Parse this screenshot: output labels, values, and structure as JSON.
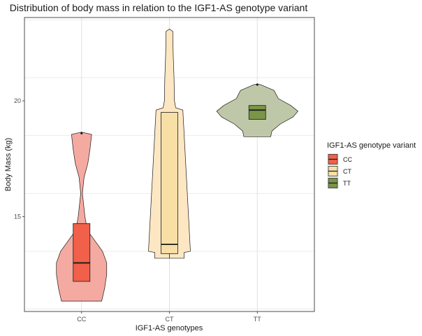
{
  "chart_data": {
    "type": "violin",
    "title": "Distribution of body mass in relation to the IGF1-AS genotype variant",
    "xlabel": "IGF1-AS genotypes",
    "ylabel": "Body Mass (kg)",
    "categories": [
      "CC",
      "CT",
      "TT"
    ],
    "y_ticks": [
      15,
      20
    ],
    "ylim": [
      10.9,
      23.6
    ],
    "grid": true,
    "legend": {
      "title": "IGF1-AS genotype variant",
      "position": "right",
      "entries": [
        "CC",
        "CT",
        "TT"
      ]
    },
    "colors": {
      "CC": {
        "fill": "#f4aaa1",
        "box": "#f0604a"
      },
      "CT": {
        "fill": "#fde7c3",
        "box": "#f7dfa6"
      },
      "TT": {
        "fill": "#bec8a8",
        "box": "#7a9448"
      }
    },
    "series": [
      {
        "name": "CC",
        "box": {
          "min": 12.2,
          "q1": 12.2,
          "median": 13.0,
          "q3": 14.7,
          "max": 14.7
        },
        "outliers": [
          18.6
        ],
        "violin": [
          {
            "y": 11.35,
            "w": 0.48
          },
          {
            "y": 11.9,
            "w": 0.55
          },
          {
            "y": 12.5,
            "w": 0.6
          },
          {
            "y": 13.0,
            "w": 0.6
          },
          {
            "y": 13.5,
            "w": 0.5
          },
          {
            "y": 14.0,
            "w": 0.3
          },
          {
            "y": 14.4,
            "w": 0.14
          },
          {
            "y": 15.0,
            "w": 0.08
          },
          {
            "y": 16.0,
            "w": 0.02
          },
          {
            "y": 16.7,
            "w": 0.06
          },
          {
            "y": 17.3,
            "w": 0.15
          },
          {
            "y": 17.9,
            "w": 0.2
          },
          {
            "y": 18.55,
            "w": 0.24
          },
          {
            "y": 18.65,
            "w": 0.0
          }
        ]
      },
      {
        "name": "CT",
        "box": {
          "min": 13.2,
          "q1": 13.4,
          "median": 13.8,
          "q3": 19.5,
          "max": 19.5
        },
        "outliers": [],
        "violin": [
          {
            "y": 13.2,
            "w": 0.35
          },
          {
            "y": 13.45,
            "w": 0.35
          },
          {
            "y": 13.5,
            "w": 0.5
          },
          {
            "y": 19.6,
            "w": 0.32
          },
          {
            "y": 19.7,
            "w": 0.15
          },
          {
            "y": 20.0,
            "w": 0.12
          },
          {
            "y": 21.0,
            "w": 0.11
          },
          {
            "y": 22.0,
            "w": 0.09
          },
          {
            "y": 23.0,
            "w": 0.08
          },
          {
            "y": 23.1,
            "w": 0.0
          }
        ]
      },
      {
        "name": "TT",
        "box": {
          "min": 19.2,
          "q1": 19.2,
          "median": 19.6,
          "q3": 19.8,
          "max": 19.8
        },
        "outliers": [
          20.7
        ],
        "violin": [
          {
            "y": 18.45,
            "w": 0.32
          },
          {
            "y": 18.7,
            "w": 0.35
          },
          {
            "y": 19.0,
            "w": 0.55
          },
          {
            "y": 19.3,
            "w": 0.85
          },
          {
            "y": 19.55,
            "w": 0.97
          },
          {
            "y": 19.8,
            "w": 0.8
          },
          {
            "y": 20.1,
            "w": 0.5
          },
          {
            "y": 20.45,
            "w": 0.4
          },
          {
            "y": 20.7,
            "w": 0.08
          },
          {
            "y": 20.72,
            "w": 0.0
          }
        ]
      }
    ]
  }
}
